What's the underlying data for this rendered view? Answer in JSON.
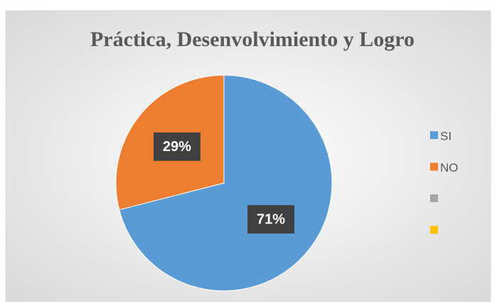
{
  "chart_data": {
    "type": "pie",
    "title": "Práctica, Desenvolvimiento y Logro",
    "categories": [
      "SI",
      "NO",
      null,
      null
    ],
    "values": [
      71,
      29,
      null,
      null
    ],
    "value_labels": [
      "71%",
      "29%",
      null,
      null
    ],
    "colors": [
      "#5b9bd5",
      "#ed7d31",
      "#a5a5a5",
      "#ffc000"
    ],
    "legend": "right"
  }
}
